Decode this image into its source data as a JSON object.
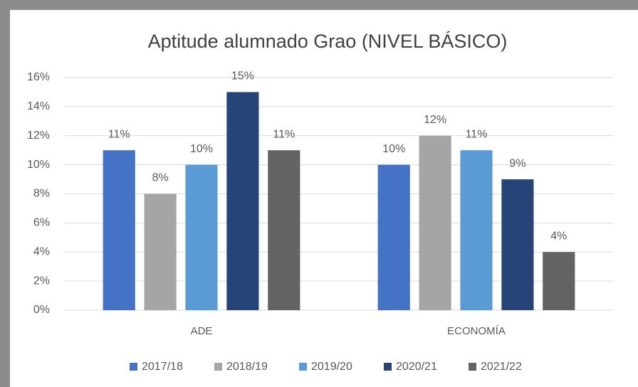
{
  "chart_data": {
    "type": "bar",
    "title": "Aptitude alumnado Grao (NIVEL BÁSICO)",
    "categories": [
      "ADE",
      "ECONOMÍA"
    ],
    "series": [
      {
        "name": "2017/18",
        "color": "#4472c4",
        "values": [
          11,
          10
        ],
        "value_labels": [
          "11%",
          "10%"
        ]
      },
      {
        "name": "2018/19",
        "color": "#a5a5a5",
        "values": [
          8,
          12
        ],
        "value_labels": [
          "8%",
          "12%"
        ]
      },
      {
        "name": "2019/20",
        "color": "#5b9bd5",
        "values": [
          10,
          11
        ],
        "value_labels": [
          "10%",
          "11%"
        ]
      },
      {
        "name": "2020/21",
        "color": "#264478",
        "values": [
          15,
          9
        ],
        "value_labels": [
          "15%",
          "9%"
        ]
      },
      {
        "name": "2021/22",
        "color": "#636363",
        "values": [
          11,
          4
        ],
        "value_labels": [
          "11%",
          "4%"
        ]
      }
    ],
    "ylim": [
      0,
      16
    ],
    "yticks": [
      {
        "value": 0,
        "label": "0%"
      },
      {
        "value": 2,
        "label": "2%"
      },
      {
        "value": 4,
        "label": "4%"
      },
      {
        "value": 6,
        "label": "6%"
      },
      {
        "value": 8,
        "label": "8%"
      },
      {
        "value": 10,
        "label": "10%"
      },
      {
        "value": 12,
        "label": "12%"
      },
      {
        "value": 14,
        "label": "14%"
      },
      {
        "value": 16,
        "label": "16%"
      }
    ],
    "grid": true,
    "legend": "bottom"
  }
}
